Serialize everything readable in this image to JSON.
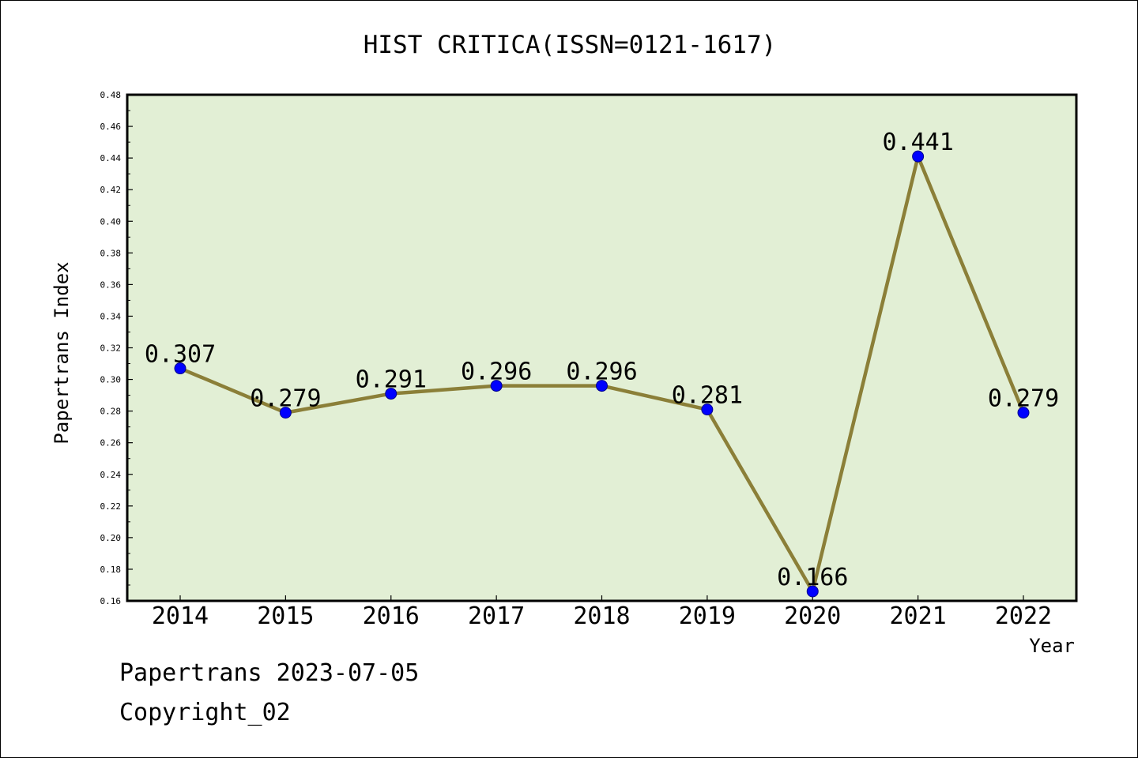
{
  "chart_data": {
    "type": "line",
    "title": "HIST CRITICA(ISSN=0121-1617)",
    "xlabel": "Year",
    "ylabel": "Papertrans Index",
    "categories": [
      "2014",
      "2015",
      "2016",
      "2017",
      "2018",
      "2019",
      "2020",
      "2021",
      "2022"
    ],
    "series": [
      {
        "values": [
          0.307,
          0.279,
          0.291,
          0.296,
          0.296,
          0.281,
          0.166,
          0.441,
          0.279
        ]
      }
    ],
    "data_labels": [
      "0.307",
      "0.279",
      "0.291",
      "0.296",
      "0.296",
      "0.281",
      "0.166",
      "0.441",
      "0.279"
    ],
    "ylim": [
      0.16,
      0.48
    ],
    "yticks": [
      "0.16",
      "0.18",
      "0.20",
      "0.22",
      "0.24",
      "0.26",
      "0.28",
      "0.30",
      "0.32",
      "0.34",
      "0.36",
      "0.38",
      "0.40",
      "0.42",
      "0.44",
      "0.46",
      "0.48"
    ],
    "grid": false,
    "colors": {
      "plot_background": "#e2efd5",
      "line": "#8b7f38",
      "marker": "#0000ff"
    }
  },
  "footer": {
    "line1": "Papertrans 2023-07-05",
    "line2": "Copyright_02"
  }
}
